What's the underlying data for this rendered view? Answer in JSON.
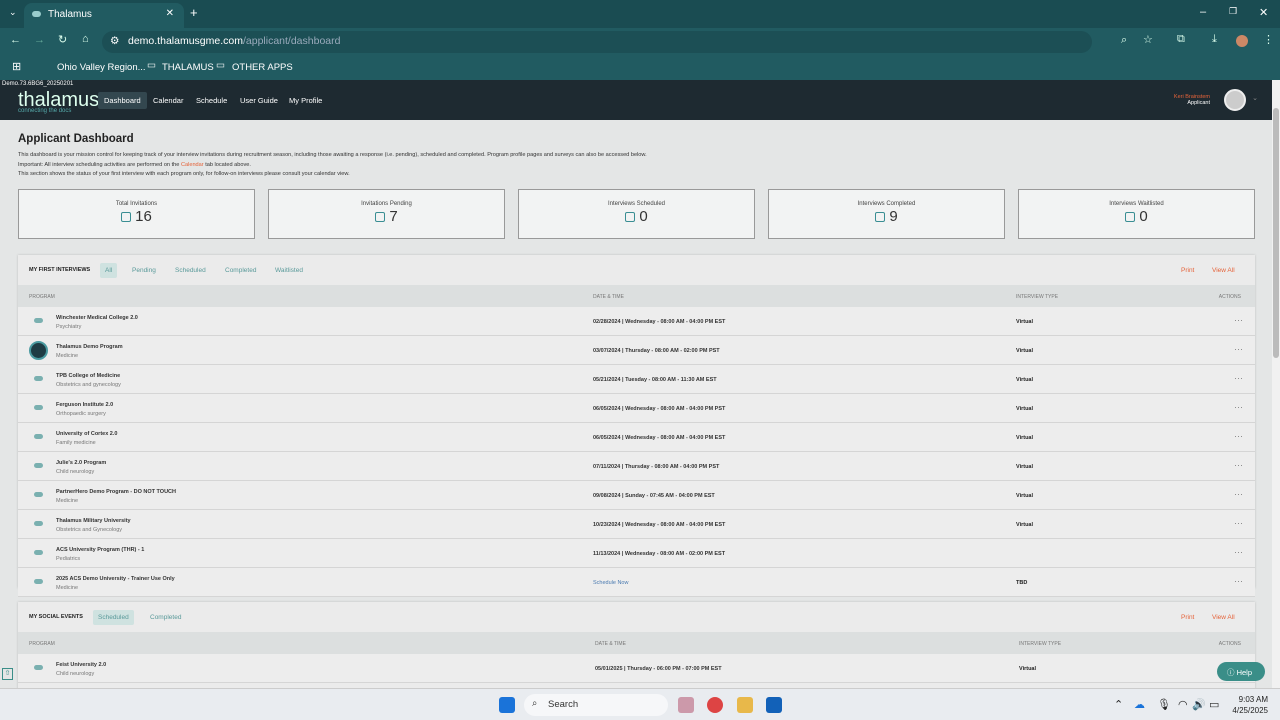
{
  "browser": {
    "tab_title": "Thalamus",
    "url_host": "demo.thalamusgme.com",
    "url_path": "/applicant/dashboard",
    "bookmarks": [
      "Ohio Valley Region...",
      "THALAMUS",
      "OTHER APPS"
    ]
  },
  "app": {
    "version": "Demo.73.6BG6_20250201",
    "logo": "thalamus",
    "logo_tagline": "connecting the docs",
    "nav": [
      "Dashboard",
      "Calendar",
      "Schedule",
      "User Guide",
      "My Profile"
    ],
    "user_name": "Keri Brainstem",
    "user_role": "Applicant"
  },
  "page": {
    "title": "Applicant Dashboard",
    "desc1": "This dashboard is your mission control for keeping track of your interview invitations during recruitment season, including those awaiting a response (i.e. pending), scheduled and completed. Program profile pages and surveys can also be accessed below.",
    "desc2a": "Important: All interview scheduling activities are performed on the",
    "desc2link": "Calendar",
    "desc2b": "tab located above.",
    "desc3": "This section shows the status of your first interview with each program only, for follow-on interviews please consult your calendar view."
  },
  "stats": [
    {
      "label": "Total Invitations",
      "value": "16"
    },
    {
      "label": "Invitations Pending",
      "value": "7"
    },
    {
      "label": "Interviews Scheduled",
      "value": "0"
    },
    {
      "label": "Interviews Completed",
      "value": "9"
    },
    {
      "label": "Interviews Waitlisted",
      "value": "0"
    }
  ],
  "interviews": {
    "title": "MY FIRST INTERVIEWS",
    "filters": [
      "All",
      "Pending",
      "Scheduled",
      "Completed",
      "Waitlisted"
    ],
    "active_filter": "All",
    "print": "Print",
    "view_all": "View All",
    "columns": [
      "PROGRAM",
      "DATE & TIME",
      "INTERVIEW TYPE",
      "ACTIONS"
    ],
    "rows": [
      {
        "program": "Winchester Medical College 2.0",
        "specialty": "Psychiatry",
        "datetime": "02/28/2024 | Wednesday - 08:00 AM - 04:00 PM EST",
        "type": "Virtual"
      },
      {
        "program": "Thalamus Demo Program",
        "specialty": "Medicine",
        "datetime": "03/07/2024 | Thursday - 08:00 AM - 02:00 PM PST",
        "type": "Virtual"
      },
      {
        "program": "TPB College of Medicine",
        "specialty": "Obstetrics and gynecology",
        "datetime": "05/21/2024 | Tuesday - 08:00 AM - 11:30 AM EST",
        "type": "Virtual"
      },
      {
        "program": "Ferguson Institute 2.0",
        "specialty": "Orthopaedic surgery",
        "datetime": "06/05/2024 | Wednesday - 08:00 AM - 04:00 PM PST",
        "type": "Virtual"
      },
      {
        "program": "University of Cortex 2.0",
        "specialty": "Family medicine",
        "datetime": "06/05/2024 | Wednesday - 08:00 AM - 04:00 PM EST",
        "type": "Virtual"
      },
      {
        "program": "Julie's 2.0 Program",
        "specialty": "Child neurology",
        "datetime": "07/11/2024 | Thursday - 08:00 AM - 04:00 PM PST",
        "type": "Virtual"
      },
      {
        "program": "PartnerHero Demo Program - DO NOT TOUCH",
        "specialty": "Medicine",
        "datetime": "09/08/2024 | Sunday - 07:45 AM - 04:00 PM EST",
        "type": "Virtual"
      },
      {
        "program": "Thalamus Military University",
        "specialty": "Obstetrics and Gynecology",
        "datetime": "10/23/2024 | Wednesday - 08:00 AM - 04:00 PM EST",
        "type": "Virtual"
      },
      {
        "program": "ACS University Program (THR) - 1",
        "specialty": "Pediatrics",
        "datetime": "11/13/2024 | Wednesday - 08:00 AM - 02:00 PM EST",
        "type": ""
      },
      {
        "program": "2025 ACS Demo University - Trainer Use Only",
        "specialty": "Medicine",
        "datetime": "Schedule Now",
        "type": "TBD"
      }
    ]
  },
  "social": {
    "title": "MY SOCIAL EVENTS",
    "filters": [
      "Scheduled",
      "Completed"
    ],
    "active_filter": "Scheduled",
    "print": "Print",
    "view_all": "View All",
    "columns": [
      "PROGRAM",
      "DATE & TIME",
      "INTERVIEW TYPE",
      "ACTIONS"
    ],
    "rows": [
      {
        "program": "Feist University 2.0",
        "specialty": "Child neurology",
        "datetime": "05/01/2025 | Thursday - 06:00 PM - 07:00 PM EST",
        "type": "Virtual"
      }
    ]
  },
  "help": "Help",
  "taskbar": {
    "search": "Search",
    "time": "9:03 AM",
    "date": "4/25/2025"
  }
}
